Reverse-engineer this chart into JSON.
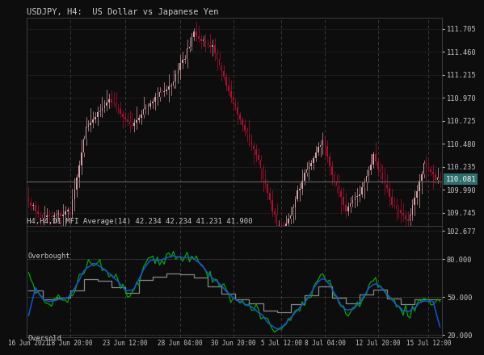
{
  "title": "USDJPY, H4:  US Dollar vs Japanese Yen",
  "mfi_label": "H4,H4,D1 MFI Average(14) 42.234 42.234 41.231 41.900",
  "price_label": "110.081",
  "bg_color": "#0d0d0d",
  "candle_up_color": "#d4a0a8",
  "candle_down_color": "#b01030",
  "candle_wick_up": "#d4a0a8",
  "candle_wick_down": "#b01030",
  "grid_color": "#222222",
  "text_color": "#c8c8c8",
  "axis_color": "#444444",
  "vline_color": "#3a3a3a",
  "price_ylim": [
    109.6,
    111.82
  ],
  "price_yticks": [
    109.745,
    109.99,
    110.235,
    110.48,
    110.725,
    110.97,
    111.215,
    111.46,
    111.705
  ],
  "mfi_ylim": [
    18.0,
    106.0
  ],
  "mfi_yticks": [
    20.0,
    50.0,
    80.0,
    102.677
  ],
  "overbought_level": 80.0,
  "oversold_level": 20.0,
  "current_price_line": 110.081,
  "price_box_color": "#2e6e6e",
  "line_color_mfi_green": "#00aa00",
  "line_color_mfi_blue": "#1155dd",
  "line_color_mfi_gray": "#888888",
  "x_tick_labels": [
    "16 Jun 2021",
    "18 Jun 20:00",
    "23 Jun 12:00",
    "28 Jun 04:00",
    "30 Jun 20:00",
    "5 Jul 12:00",
    "8 Jul 04:00",
    "12 Jul 20:00",
    "15 Jul 12:00"
  ],
  "figsize": [
    6.0,
    4.5
  ],
  "dpi": 100
}
